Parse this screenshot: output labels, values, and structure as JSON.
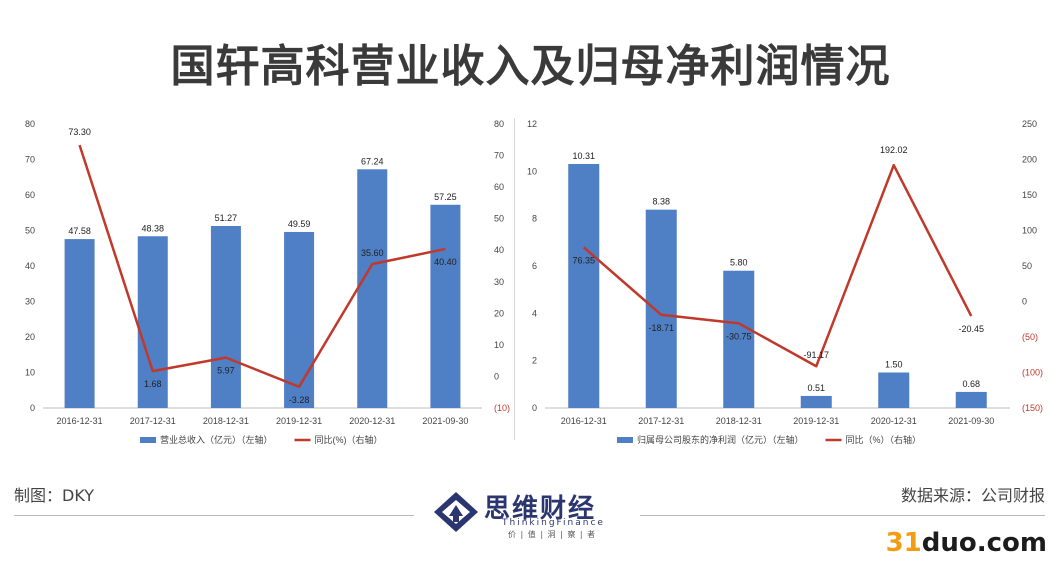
{
  "page": {
    "title": "国轩高科营业收入及归母净利润情况",
    "made_by": "制图：DKY",
    "source": "数据来源：公司财报",
    "logo_cn": "思维财经",
    "logo_en": "ThinkingFinance",
    "logo_motto": "价 | 值 | 洞 | 察 | 者",
    "watermark_num": "31",
    "watermark_rest": "duo.com"
  },
  "chart_data": [
    {
      "type": "bar",
      "title": "",
      "categories": [
        "2016-12-31",
        "2017-12-31",
        "2018-12-31",
        "2019-12-31",
        "2020-12-31",
        "2021-09-30"
      ],
      "series": [
        {
          "name": "营业总收入（亿元）（左轴）",
          "type": "bar",
          "axis": "left",
          "color": "#4f7fc4",
          "values": [
            47.58,
            48.38,
            51.27,
            49.59,
            67.24,
            57.25
          ],
          "labels": [
            "47.58",
            "48.38",
            "51.27",
            "49.59",
            "67.24",
            "57.25"
          ]
        },
        {
          "name": "同比(%)（右轴）",
          "type": "line",
          "axis": "right",
          "color": "#c0392b",
          "values": [
            73.3,
            1.68,
            5.97,
            -3.28,
            35.6,
            40.4
          ],
          "labels": [
            "73.30",
            "1.68",
            "5.97",
            "-3.28",
            "35.60",
            "40.40"
          ]
        }
      ],
      "left_axis": {
        "min": 0,
        "max": 80,
        "ticks": [
          "0",
          "10",
          "20",
          "30",
          "40",
          "50",
          "60",
          "70",
          "80"
        ]
      },
      "right_axis": {
        "min": -10,
        "max": 80,
        "ticks": [
          "(10)",
          "0",
          "10",
          "20",
          "30",
          "40",
          "50",
          "60",
          "70",
          "80"
        ]
      }
    },
    {
      "type": "bar",
      "title": "",
      "categories": [
        "2016-12-31",
        "2017-12-31",
        "2018-12-31",
        "2019-12-31",
        "2020-12-31",
        "2021-09-30"
      ],
      "series": [
        {
          "name": "归属母公司股东的净利润（亿元）（左轴）",
          "type": "bar",
          "axis": "left",
          "color": "#4f7fc4",
          "values": [
            10.31,
            8.38,
            5.8,
            0.51,
            1.5,
            0.68
          ],
          "labels": [
            "10.31",
            "8.38",
            "5.80",
            "0.51",
            "1.50",
            "0.68"
          ]
        },
        {
          "name": "同比（%）（右轴）",
          "type": "line",
          "axis": "right",
          "color": "#c0392b",
          "values": [
            76.35,
            -18.71,
            -30.75,
            -91.17,
            192.02,
            -20.45
          ],
          "labels": [
            "76.35",
            "-18.71",
            "-30.75",
            "-91.17",
            "192.02",
            "-20.45"
          ]
        }
      ],
      "left_axis": {
        "min": 0,
        "max": 12,
        "ticks": [
          "0",
          "2",
          "4",
          "6",
          "8",
          "10",
          "12"
        ]
      },
      "right_axis": {
        "min": -150,
        "max": 250,
        "ticks": [
          "(150)",
          "(100)",
          "(50)",
          "0",
          "50",
          "100",
          "150",
          "200",
          "250"
        ]
      }
    }
  ]
}
